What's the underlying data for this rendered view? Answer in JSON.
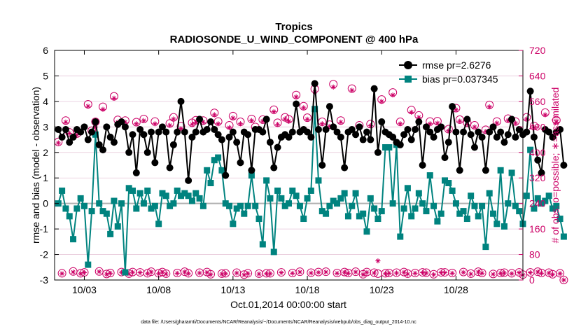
{
  "colors": {
    "rmse": "#000000",
    "bias": "#00837f",
    "obs": "#cc0066",
    "zero": "#b0b0b0",
    "grid": "#e6c6d8"
  },
  "chart_data": {
    "type": "line",
    "title": "Tropics",
    "subtitle": "RADIOSONDE_U_WIND_COMPONENT @ 400 hPa",
    "xlabel": "Oct.01,2014 00:00:00 start",
    "ylabel": "rmse and bias (model - observation)",
    "y2label": "# of obs: o=possible; ∗=assimilated",
    "footnote": "data file: /Users/gharamti/Documents/NCAR/Reanalysis/~/Documents/NCAR/Reanalysis/webpub/obs_diag_output_2014-10.nc",
    "xlim": [
      1,
      32.5
    ],
    "ylim": [
      -3,
      6
    ],
    "y2lim": [
      0,
      720
    ],
    "xticks": [
      3,
      8,
      13,
      18,
      23,
      28
    ],
    "xticklabels": [
      "10/03",
      "10/08",
      "10/13",
      "10/18",
      "10/23",
      "10/28"
    ],
    "yticks": [
      -3,
      -2,
      -1,
      0,
      1,
      2,
      3,
      4,
      5,
      6
    ],
    "y2ticks": [
      0,
      80,
      160,
      240,
      320,
      400,
      480,
      560,
      640,
      720
    ],
    "legend": {
      "position": "top-right",
      "entries": [
        "rmse pr=2.6276",
        "bias pr=0.037345"
      ]
    },
    "start_day": 1.25,
    "step": 0.25,
    "series": [
      {
        "name": "rmse pr=2.6276",
        "marker": "circle",
        "values": [
          2.9,
          2.6,
          2.9,
          2.4,
          2.6,
          2.9,
          2.8,
          3.0,
          2.5,
          2.8,
          3.2,
          2.3,
          2.1,
          3.0,
          2.6,
          2.4,
          3.1,
          3.2,
          3.0,
          2.0,
          2.7,
          1.2,
          2.9,
          2.7,
          2.0,
          2.8,
          1.6,
          2.8,
          3.0,
          2.8,
          1.4,
          2.3,
          2.8,
          4.0,
          2.8,
          0.9,
          2.6,
          2.8,
          3.3,
          2.8,
          2.9,
          3.2,
          2.9,
          2.7,
          2.5,
          1.1,
          2.6,
          2.8,
          2.4,
          1.6,
          2.8,
          2.7,
          1.3,
          2.9,
          2.9,
          2.8,
          3.3,
          2.4,
          1.4,
          2.2,
          2.6,
          2.7,
          2.6,
          2.8,
          3.9,
          2.8,
          2.9,
          2.8,
          2.6,
          4.7,
          2.9,
          1.5,
          2.9,
          3.8,
          3.0,
          2.8,
          2.6,
          1.4,
          2.8,
          2.9,
          2.7,
          3.0,
          2.5,
          2.8,
          2.5,
          4.5,
          2.0,
          3.2,
          2.8,
          2.7,
          2.6,
          2.4,
          2.3,
          2.7,
          2.9,
          2.5,
          2.9,
          3.2,
          1.5,
          3.0,
          2.8,
          2.6,
          2.9,
          3.0,
          1.8,
          2.4,
          3.8,
          2.8,
          1.3,
          2.8,
          3.3,
          2.7,
          2.2,
          2.8,
          2.6,
          1.3,
          2.8,
          3.0,
          2.6,
          2.8,
          2.4,
          2.7,
          3.3,
          2.6,
          2.9,
          2.7,
          2.8,
          4.4,
          2.6,
          1.7,
          1.2,
          2.9,
          2.8,
          2.6,
          2.8,
          2.9,
          1.5
        ]
      },
      {
        "name": "bias pr=0.037345",
        "marker": "square",
        "values": [
          0.0,
          0.5,
          -0.2,
          -0.5,
          -1.4,
          -0.2,
          0.2,
          -0.1,
          -2.4,
          -0.3,
          2.7,
          0.0,
          -0.3,
          -0.4,
          -1.2,
          0.1,
          -0.9,
          0.0,
          -2.7,
          0.6,
          0.5,
          -0.2,
          0.4,
          0.0,
          0.5,
          -0.2,
          -0.1,
          -0.8,
          0.4,
          0.3,
          -0.1,
          0.0,
          0.5,
          0.3,
          0.4,
          0.3,
          0.1,
          0.4,
          0.2,
          -0.1,
          1.3,
          0.8,
          1.7,
          1.8,
          1.3,
          0.0,
          -0.1,
          -0.8,
          -0.2,
          -0.1,
          -0.4,
          -0.1,
          1.1,
          -0.1,
          -0.6,
          -1.6,
          0.9,
          0.2,
          -1.9,
          0.5,
          0.2,
          -0.1,
          0.0,
          0.5,
          0.3,
          -0.1,
          -0.6,
          0.2,
          0.5,
          3.7,
          0.9,
          -0.3,
          -0.4,
          -0.1,
          0.1,
          0.0,
          0.2,
          0.4,
          -0.5,
          -0.1,
          0.4,
          -0.5,
          -0.4,
          -1.1,
          0.2,
          -0.2,
          -0.6,
          -0.3,
          2.2,
          2.2,
          0.0,
          2.3,
          -1.3,
          -0.2,
          0.6,
          -0.5,
          -0.2,
          0.4,
          0.0,
          -0.3,
          1.1,
          -0.1,
          -0.7,
          -0.4,
          0.9,
          0.8,
          0.5,
          0.0,
          -0.4,
          -0.3,
          -0.6,
          0.3,
          -0.1,
          -0.5,
          -0.1,
          -1.7,
          0.4,
          -0.4,
          -0.8,
          1.3,
          -0.9,
          0.0,
          1.2,
          -0.1,
          -0.3,
          -0.8,
          0.3,
          2.1,
          -0.2,
          0.2,
          0.0,
          0.1,
          0.3,
          -0.2,
          -0.1,
          -0.6,
          -1.3
        ]
      },
      {
        "name": "possible",
        "marker": "circle-open",
        "values": [
          433,
          21,
          500,
          463,
          27,
          459,
          21,
          24,
          551,
          468,
          496,
          27,
          543,
          19,
          22,
          576,
          502,
          25,
          500,
          20,
          25,
          495,
          24,
          505,
          21,
          26,
          497,
          21,
          25,
          20,
          491,
          510,
          22,
          482,
          26,
          21,
          493,
          501,
          23,
          500,
          25,
          18,
          524,
          497,
          20,
          21,
          485,
          514,
          23,
          496,
          17,
          21,
          505,
          480,
          20,
          503,
          21,
          21,
          534,
          493,
          24,
          510,
          504,
          22,
          580,
          26,
          545,
          509,
          23,
          599,
          25,
          496,
          26,
          487,
          614,
          22,
          500,
          25,
          22,
          600,
          26,
          485,
          18,
          25,
          489,
          23,
          20,
          566,
          21,
          22,
          588,
          23,
          496,
          25,
          20,
          533,
          22,
          516,
          24,
          23,
          497,
          18,
          498,
          24,
          24,
          473,
          22,
          539,
          503,
          25,
          493,
          20,
          485,
          26,
          22,
          471,
          549,
          19,
          497,
          22,
          23,
          506,
          21,
          497,
          24,
          17,
          510,
          24,
          483,
          26,
          22,
          525,
          23,
          18,
          501,
          21,
          0
        ]
      },
      {
        "name": "assimilated",
        "marker": "asterisk",
        "values": [
          430,
          20,
          495,
          460,
          25,
          455,
          20,
          23,
          545,
          465,
          480,
          26,
          535,
          18,
          21,
          570,
          495,
          24,
          495,
          19,
          24,
          490,
          23,
          500,
          20,
          25,
          490,
          20,
          24,
          19,
          485,
          505,
          21,
          475,
          25,
          20,
          488,
          495,
          22,
          495,
          24,
          17,
          518,
          490,
          19,
          20,
          478,
          508,
          22,
          490,
          16,
          20,
          500,
          475,
          19,
          498,
          20,
          20,
          528,
          488,
          23,
          505,
          498,
          21,
          574,
          25,
          540,
          504,
          22,
          590,
          24,
          490,
          25,
          482,
          605,
          21,
          495,
          24,
          21,
          595,
          25,
          480,
          17,
          24,
          484,
          22,
          60,
          560,
          20,
          21,
          580,
          22,
          490,
          24,
          19,
          526,
          21,
          510,
          23,
          22,
          490,
          17,
          492,
          23,
          23,
          468,
          21,
          534,
          498,
          24,
          488,
          19,
          480,
          25,
          21,
          466,
          543,
          18,
          492,
          21,
          22,
          500,
          20,
          492,
          23,
          16,
          505,
          23,
          478,
          25,
          21,
          518,
          22,
          17,
          495,
          20,
          0
        ]
      }
    ]
  }
}
